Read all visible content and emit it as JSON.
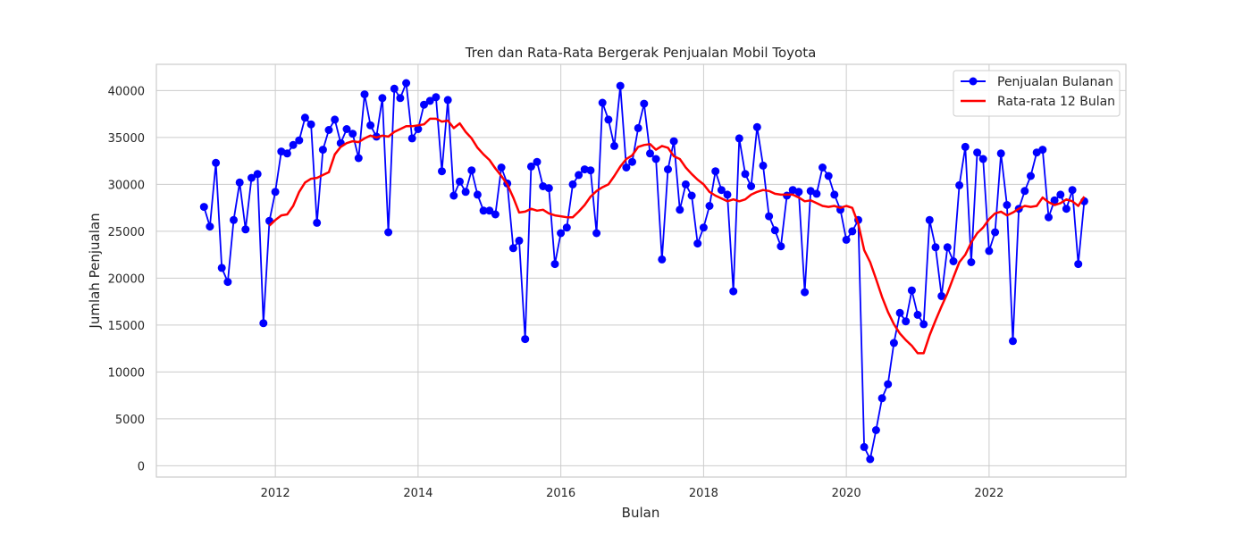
{
  "chart_data": {
    "type": "line",
    "title": "Tren dan Rata-Rata Bergerak Penjualan Mobil Toyota",
    "xlabel": "Bulan",
    "ylabel": "Jumlah Penjualan",
    "xlim": [
      "2010-05",
      "2023-12"
    ],
    "ylim": [
      -1200,
      42800
    ],
    "x_ticks": [
      "2012",
      "2014",
      "2016",
      "2018",
      "2020",
      "2022"
    ],
    "y_ticks": [
      0,
      5000,
      10000,
      15000,
      20000,
      25000,
      30000,
      35000,
      40000
    ],
    "grid": true,
    "legend_position": "upper right",
    "series": [
      {
        "name": "Penjualan Bulanan",
        "color": "#0000ff",
        "marker": "circle",
        "start": "2011-01",
        "values": [
          27600,
          25500,
          32300,
          21100,
          19600,
          26200,
          30200,
          25200,
          30700,
          31100,
          15200,
          26100,
          29200,
          33500,
          33300,
          34200,
          34700,
          37100,
          36400,
          25900,
          33700,
          35800,
          36900,
          34400,
          35900,
          35400,
          32800,
          39600,
          36300,
          35100,
          39200,
          24900,
          40200,
          39200,
          40800,
          34900,
          35900,
          38500,
          38900,
          39300,
          31400,
          39000,
          28800,
          30300,
          29200,
          31500,
          28900,
          27200,
          27200,
          26800,
          31800,
          30100,
          23200,
          24000,
          13500,
          31900,
          32400,
          29800,
          29600,
          21500,
          24800,
          25400,
          30000,
          31000,
          31600,
          31500,
          24800,
          38700,
          36900,
          34100,
          40500,
          31800,
          32400,
          36000,
          38600,
          33300,
          32700,
          22000,
          31600,
          34600,
          27300,
          30000,
          28800,
          23700,
          25400,
          27700,
          31400,
          29400,
          28900,
          18600,
          34900,
          31100,
          29800,
          36100,
          32000,
          26600,
          25100,
          23400,
          28800,
          29400,
          29200,
          18500,
          29300,
          29000,
          31800,
          30900,
          28900,
          27300,
          24100,
          25000,
          26200,
          2000,
          700,
          3800,
          7200,
          8700,
          13100,
          16300,
          15400,
          18700,
          16100,
          15100,
          26200,
          23300,
          18100,
          23300,
          21800,
          29900,
          34000,
          21700,
          33400,
          32700,
          22900,
          24900,
          33300,
          27800,
          13300,
          27400,
          29300,
          30900,
          33400,
          33700,
          26500,
          28300,
          28900,
          27400,
          29400,
          21500,
          28200
        ]
      },
      {
        "name": "Rata-rata 12 Bulan",
        "color": "#ff0000",
        "start": "2011-12",
        "values": [
          25600,
          26200,
          26700,
          26800,
          27700,
          29200,
          30200,
          30600,
          30700,
          31000,
          31300,
          33200,
          34000,
          34400,
          34600,
          34500,
          34900,
          35200,
          35000,
          35200,
          35100,
          35600,
          35900,
          36200,
          36200,
          36300,
          36400,
          37000,
          37000,
          36700,
          36800,
          36000,
          36500,
          35600,
          34900,
          33900,
          33200,
          32600,
          31700,
          30900,
          30000,
          28600,
          27000,
          27100,
          27400,
          27200,
          27300,
          26900,
          26700,
          26600,
          26500,
          26500,
          27100,
          27800,
          28700,
          29300,
          29700,
          30000,
          30900,
          31900,
          32700,
          33100,
          34000,
          34200,
          34300,
          33700,
          34100,
          33900,
          33000,
          32700,
          31800,
          31100,
          30500,
          30000,
          29200,
          28800,
          28500,
          28200,
          28400,
          28200,
          28400,
          28900,
          29200,
          29400,
          29300,
          29000,
          28900,
          28900,
          28900,
          28600,
          28200,
          28300,
          28000,
          27700,
          27600,
          27700,
          27500,
          27700,
          27500,
          25800,
          23000,
          21700,
          19900,
          18000,
          16400,
          15100,
          14100,
          13400,
          12800,
          12000,
          12000,
          13900,
          15500,
          17000,
          18400,
          20100,
          21700,
          22500,
          23800,
          24800,
          25400,
          26300,
          26900,
          27100,
          26700,
          27000,
          27400,
          27700,
          27600,
          27700,
          28600,
          28100,
          27800,
          28000,
          28400,
          28200,
          27700,
          28700
        ]
      }
    ]
  }
}
